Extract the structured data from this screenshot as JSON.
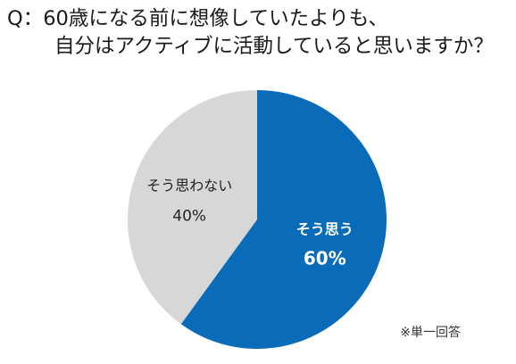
{
  "title": {
    "line1": "Q：60歳になる前に想像していたよりも、",
    "line2": "自分はアクティブに活動していると思いますか？"
  },
  "note": "※単一回答",
  "chart_data": {
    "type": "pie",
    "start_angle_deg": 0,
    "direction": "clockwise",
    "slices": [
      {
        "label": "そう思う",
        "value": 60,
        "value_label": "60%",
        "color": "#0a6cb8",
        "text_color": "#ffffff",
        "bold": true
      },
      {
        "label": "そう思わない",
        "value": 40,
        "value_label": "40%",
        "color": "#d6d7d6",
        "text_color": "#222222",
        "bold": false
      }
    ]
  }
}
